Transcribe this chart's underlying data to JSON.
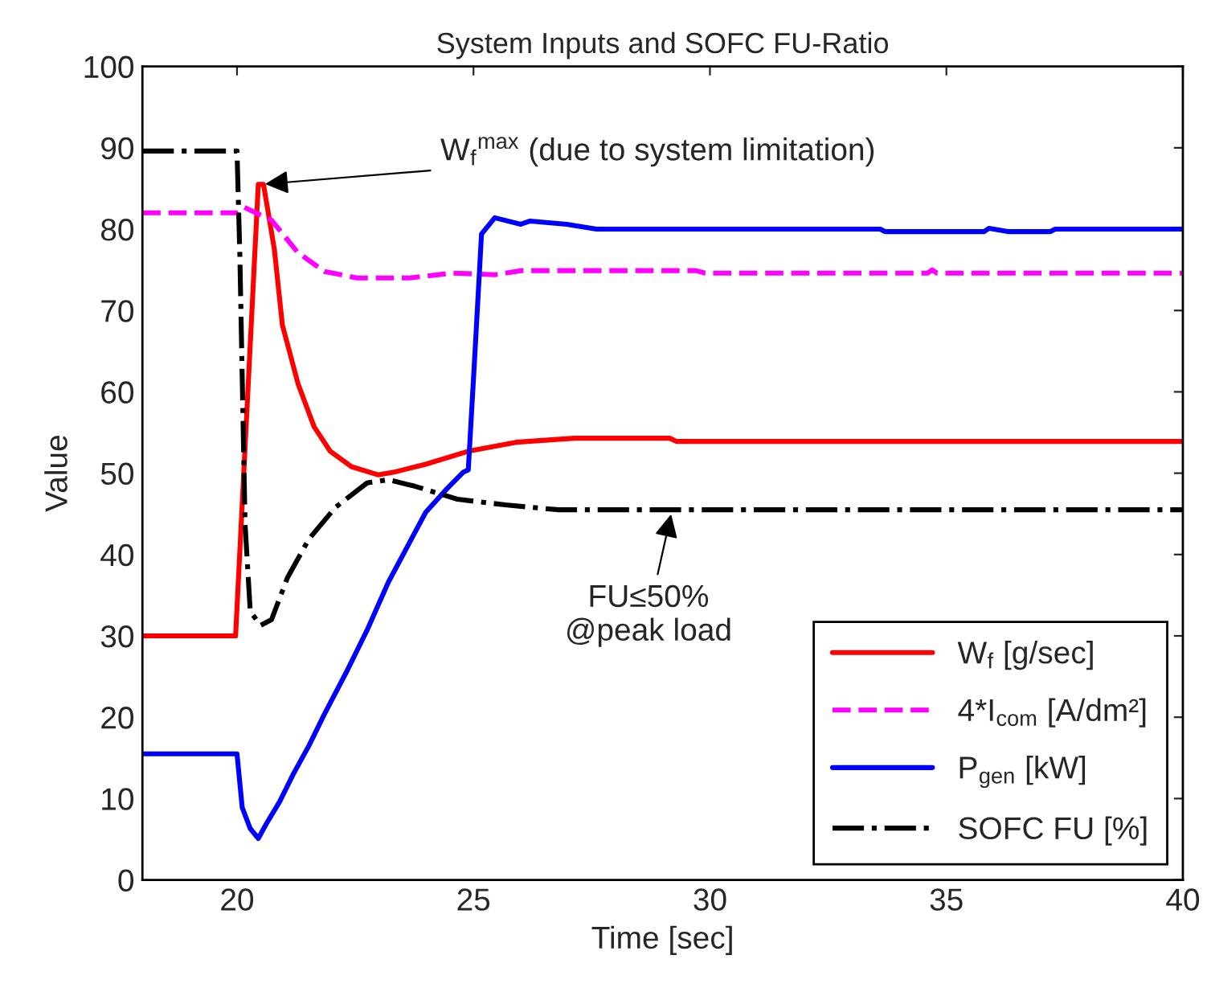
{
  "chart_data": {
    "type": "line",
    "title": "System Inputs and SOFC FU-Ratio",
    "xlabel": "Time [sec]",
    "ylabel": "Value",
    "xlim": [
      18,
      40
    ],
    "ylim": [
      0,
      100
    ],
    "xticks": [
      20,
      25,
      30,
      35,
      40
    ],
    "yticks": [
      0,
      10,
      20,
      30,
      40,
      50,
      60,
      70,
      80,
      90,
      100
    ],
    "grid": false,
    "legend": "bottom right",
    "marker": "none",
    "series": [
      {
        "name": "W$_{f}$ [g/sec]",
        "color": "#ff0000",
        "line_style": "solid",
        "x": [
          18,
          19.97,
          20.45,
          20.56,
          20.79,
          20.96,
          21.29,
          21.63,
          21.97,
          22.42,
          22.98,
          23.3,
          23.99,
          24.89,
          25.9,
          27.13,
          29.15,
          29.3,
          40
        ],
        "values": [
          30,
          30,
          85.5,
          85.5,
          77.5,
          68.2,
          61,
          55.7,
          52.7,
          50.8,
          49.8,
          50.1,
          51.1,
          52.7,
          53.8,
          54.3,
          54.3,
          53.9,
          53.9
        ]
      },
      {
        "name": "4*I$_{com}$ [A/dm²]",
        "color": "#ff00ff",
        "line_style": "dashed",
        "x": [
          18,
          20.0,
          20.15,
          20.73,
          21.29,
          21.85,
          22.53,
          23.65,
          24.55,
          25.45,
          26.0,
          27.13,
          29.7,
          29.9,
          34.6,
          34.7,
          34.8,
          40
        ],
        "values": [
          82,
          82,
          82.7,
          81.1,
          77.1,
          74.8,
          74.0,
          74.0,
          74.6,
          74.4,
          74.9,
          74.9,
          74.9,
          74.6,
          74.6,
          75.0,
          74.6,
          74.6
        ]
      },
      {
        "name": "P$_{gen}$ [kW]",
        "color": "#0000ff",
        "line_style": "solid",
        "x": [
          18,
          20.0,
          20.11,
          20.28,
          20.45,
          20.62,
          20.9,
          21.18,
          21.52,
          21.85,
          22.3,
          22.75,
          23.2,
          23.65,
          23.99,
          24.44,
          24.78,
          24.89,
          25.02,
          25.17,
          25.45,
          26.0,
          26.2,
          26.97,
          27.6,
          33.6,
          33.7,
          35.8,
          35.9,
          36.3,
          37.2,
          37.3,
          40
        ],
        "values": [
          15.5,
          15.5,
          8.9,
          6.3,
          5.1,
          6.9,
          9.6,
          12.9,
          16.5,
          20.4,
          25.4,
          30.7,
          36.6,
          41.5,
          45.2,
          48.1,
          50.1,
          50.4,
          63.6,
          79.4,
          81.4,
          80.6,
          81.0,
          80.6,
          80.0,
          80.0,
          79.7,
          79.7,
          80.1,
          79.7,
          79.7,
          80.0,
          80.0
        ]
      },
      {
        "name": "SOFC FU [%]",
        "color": "#000000",
        "line_style": "dashdot",
        "x": [
          18,
          20.0,
          20.06,
          20.17,
          20.28,
          20.5,
          20.73,
          21.07,
          21.52,
          22.08,
          22.75,
          23.2,
          23.76,
          24.66,
          25.67,
          26.8,
          40
        ],
        "values": [
          89.6,
          89.6,
          76.8,
          43.8,
          33,
          31.3,
          32,
          37.2,
          41.9,
          45.8,
          48.8,
          49.2,
          48.4,
          46.8,
          46.1,
          45.5,
          45.5
        ]
      }
    ],
    "annotations": [
      {
        "text": "W$_{f}$$^{max}$ (due to system limitation)",
        "x": 20.5,
        "y": 85.5
      },
      {
        "text": "FU≤50%\n@peak load",
        "x": 29.2,
        "y": 45.5
      }
    ]
  }
}
